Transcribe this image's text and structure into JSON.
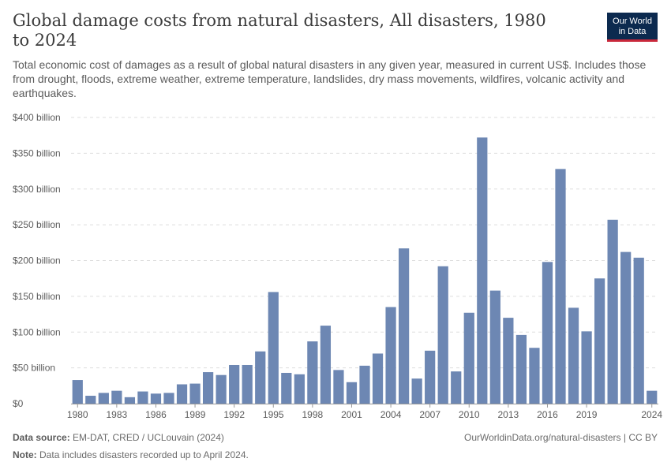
{
  "header": {
    "title": "Global damage costs from natural disasters, All disasters, 1980 to 2024",
    "subtitle": "Total economic cost of damages as a result of global natural disasters in any given year, measured in current US$. Includes those from drought, floods, extreme weather, extreme temperature, landslides, dry mass movements, wildfires, volcanic activity and earthquakes.",
    "logo_line1": "Our World",
    "logo_line2": "in Data"
  },
  "footer": {
    "source_label": "Data source:",
    "source_text": "EM-DAT, CRED / UCLouvain (2024)",
    "note_label": "Note:",
    "note_text": "Data includes disasters recorded up to April 2024.",
    "url": "OurWorldinData.org/natural-disasters | CC BY"
  },
  "colors": {
    "bar": "#6d87b3",
    "grid": "#dddddd",
    "text": "#5b5b5b",
    "logo_bg": "#0c2a4f",
    "logo_accent": "#c9283b"
  },
  "chart_data": {
    "type": "bar",
    "x": [
      1980,
      1981,
      1982,
      1983,
      1984,
      1985,
      1986,
      1987,
      1988,
      1989,
      1990,
      1991,
      1992,
      1993,
      1994,
      1995,
      1996,
      1997,
      1998,
      1999,
      2000,
      2001,
      2002,
      2003,
      2004,
      2005,
      2006,
      2007,
      2008,
      2009,
      2010,
      2011,
      2012,
      2013,
      2014,
      2015,
      2016,
      2017,
      2018,
      2019,
      2020,
      2021,
      2022,
      2023,
      2024
    ],
    "values": [
      33,
      11,
      15,
      18,
      9,
      17,
      14,
      15,
      27,
      28,
      44,
      40,
      54,
      54,
      73,
      156,
      43,
      41,
      87,
      109,
      47,
      30,
      53,
      70,
      135,
      217,
      35,
      74,
      192,
      45,
      127,
      372,
      158,
      120,
      96,
      78,
      198,
      328,
      134,
      101,
      175,
      257,
      212,
      204,
      18
    ],
    "unit": "billion US$",
    "ylim": [
      0,
      400
    ],
    "yticks": [
      {
        "value": 0,
        "label": "$0"
      },
      {
        "value": 50,
        "label": "$50 billion"
      },
      {
        "value": 100,
        "label": "$100 billion"
      },
      {
        "value": 150,
        "label": "$150 billion"
      },
      {
        "value": 200,
        "label": "$200 billion"
      },
      {
        "value": 250,
        "label": "$250 billion"
      },
      {
        "value": 300,
        "label": "$300 billion"
      },
      {
        "value": 350,
        "label": "$350 billion"
      },
      {
        "value": 400,
        "label": "$400 billion"
      }
    ],
    "xticks": [
      1980,
      1983,
      1986,
      1989,
      1992,
      1995,
      1998,
      2001,
      2004,
      2007,
      2010,
      2013,
      2016,
      2019,
      2024
    ],
    "grid": true,
    "legend": "none"
  }
}
